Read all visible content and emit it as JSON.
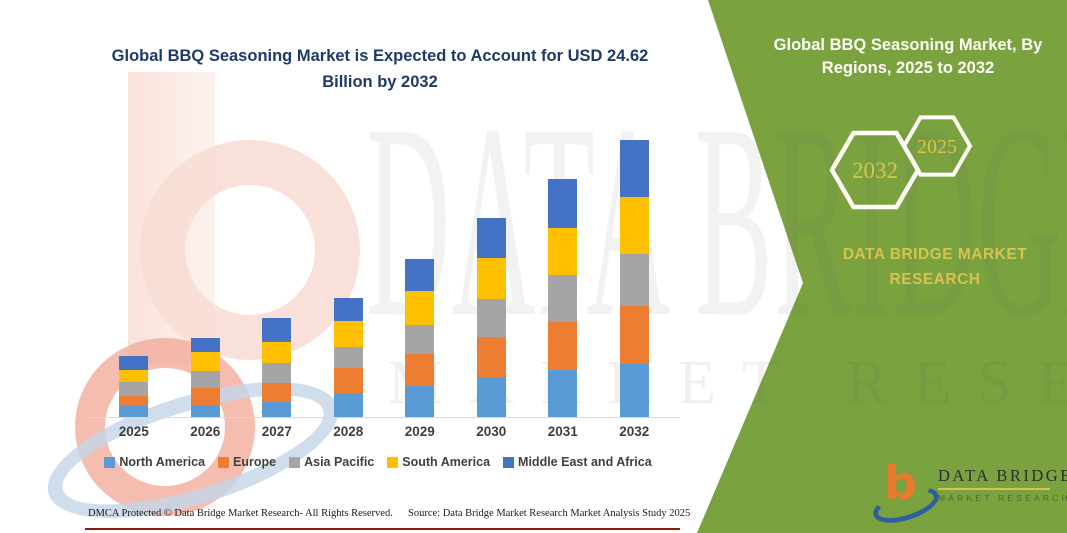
{
  "main_title": "Global BBQ Seasoning Market is Expected to Account for USD 24.62 Billion by 2032",
  "side_panel": {
    "title": "Global BBQ Seasoning Market, By Regions, 2025 to 2032",
    "hexagon_large_label": "2032",
    "hexagon_small_label": "2025",
    "brand_text": "DATA BRIDGE MARKET RESEARCH",
    "accent_green": "#7AA23F",
    "accent_yellow": "#D6C44F"
  },
  "logo": {
    "glyph": "b",
    "brand": "DATA BRIDGE",
    "sub": "MARKET RESEARCH"
  },
  "watermark": {
    "line1": "DATA BRIDGE",
    "line2": "MARKET RESEARCH"
  },
  "footer": {
    "left": "DMCA Protected © Data Bridge Market Research-  All Rights Reserved.",
    "right": "Source: Data Bridge Market Research  Market Analysis Study 2025"
  },
  "chart_data": {
    "type": "bar",
    "stacked": true,
    "title": "Global BBQ Seasoning Market is Expected to Account for USD 24.62 Billion by 2032",
    "unit": "USD Billion",
    "categories": [
      "2025",
      "2026",
      "2027",
      "2028",
      "2029",
      "2030",
      "2031",
      "2032"
    ],
    "series": [
      {
        "name": "North America",
        "color": "#5B9BD5",
        "values": [
          1.0,
          1.1,
          1.3,
          2.1,
          2.8,
          3.6,
          4.2,
          4.7
        ]
      },
      {
        "name": "Europe",
        "color": "#ED7D31",
        "values": [
          0.9,
          1.5,
          1.7,
          2.3,
          2.8,
          3.5,
          4.2,
          5.2
        ]
      },
      {
        "name": "Asia Pacific",
        "color": "#A5A5A5",
        "values": [
          1.2,
          1.5,
          1.8,
          1.8,
          2.6,
          3.4,
          4.2,
          4.6
        ]
      },
      {
        "name": "South America",
        "color": "#FFC000",
        "values": [
          1.1,
          1.7,
          1.9,
          2.3,
          3.0,
          3.6,
          4.2,
          5.1
        ]
      },
      {
        "name": "Middle East and Africa",
        "color": "#4472C4",
        "values": [
          1.2,
          1.2,
          2.1,
          2.1,
          2.8,
          3.6,
          4.3,
          5.0
        ]
      }
    ],
    "totals": [
      5.4,
      7.0,
      8.8,
      10.6,
      14.0,
      17.7,
      21.1,
      24.6
    ],
    "final_value_label": "USD 24.62 Billion by 2032",
    "ylim": [
      0,
      26
    ],
    "gridlines": false,
    "legend_position": "bottom"
  }
}
